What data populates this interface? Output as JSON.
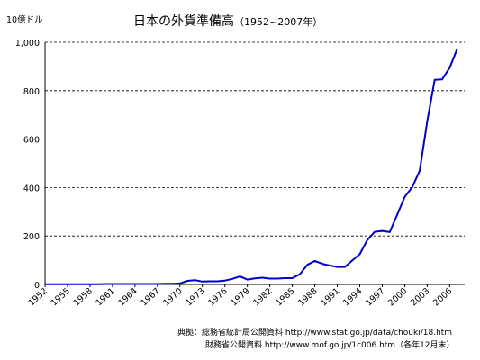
{
  "chart_data": {
    "type": "line",
    "title": "日本の外貨準備高",
    "title_suffix": "（1952~2007年）",
    "unit_label": "10億ドル",
    "ylim": [
      0,
      1000
    ],
    "yticks": [
      "0",
      "200",
      "400",
      "600",
      "800",
      "1,000"
    ],
    "xlim": [
      1952,
      2008
    ],
    "xticks": [
      "1952",
      "1955",
      "1958",
      "1961",
      "1964",
      "1967",
      "1970",
      "1973",
      "1976",
      "1979",
      "1982",
      "1985",
      "1988",
      "1991",
      "1994",
      "1997",
      "2000",
      "2003",
      "2006"
    ],
    "grid": "horizontal-dashed",
    "line_color": "#0000cc",
    "series": [
      {
        "x": [
          1952,
          1953,
          1954,
          1955,
          1956,
          1957,
          1958,
          1959,
          1960,
          1961,
          1962,
          1963,
          1964,
          1965,
          1966,
          1967,
          1968,
          1969,
          1970,
          1971,
          1972,
          1973,
          1974,
          1975,
          1976,
          1977,
          1978,
          1979,
          1980,
          1981,
          1982,
          1983,
          1984,
          1985,
          1986,
          1987,
          1988,
          1989,
          1990,
          1991,
          1992,
          1993,
          1994,
          1995,
          1996,
          1997,
          1998,
          1999,
          2000,
          2001,
          2002,
          2003,
          2004,
          2005,
          2006,
          2007
        ],
        "values": [
          1,
          1,
          1,
          1,
          1,
          1,
          1,
          1,
          2,
          2,
          2,
          2,
          2,
          2,
          2,
          2,
          3,
          3,
          4,
          15,
          18,
          12,
          13,
          13,
          16,
          23,
          33,
          20,
          25,
          28,
          24,
          24,
          26,
          26,
          42,
          81,
          97,
          85,
          78,
          72,
          72,
          99,
          125,
          183,
          217,
          221,
          216,
          288,
          361,
          402,
          470,
          673,
          845,
          847,
          895,
          973
        ]
      }
    ]
  },
  "source": {
    "line1": "典拠：総務省統計局公開資料 http://www.stat.go.jp/data/chouki/18.htm",
    "line2": "財務省公開資料 http://www.mof.go.jp/1c006.htm（各年12月末）"
  }
}
